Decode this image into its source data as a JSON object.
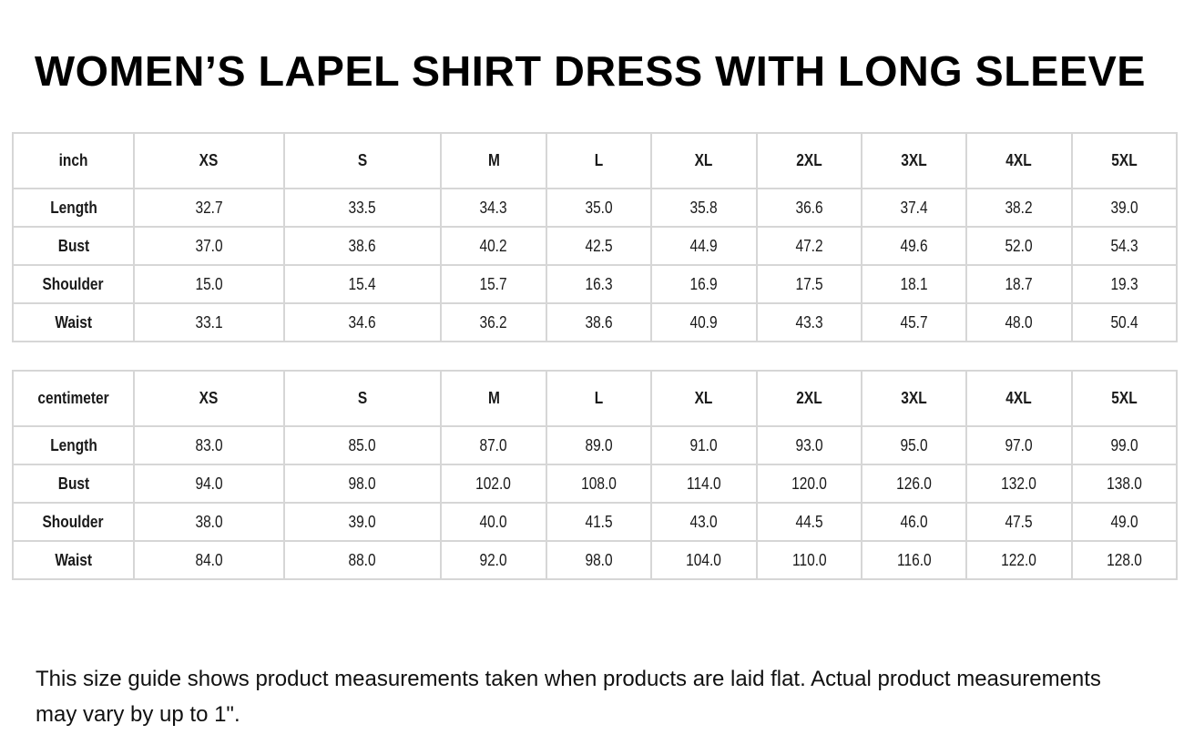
{
  "title": "WOMEN’S LAPEL SHIRT DRESS WITH LONG SLEEVE",
  "sizes": [
    "XS",
    "S",
    "M",
    "L",
    "XL",
    "2XL",
    "3XL",
    "4XL",
    "5XL"
  ],
  "tables": [
    {
      "unit": "inch",
      "rows": [
        {
          "label": "Length",
          "values": [
            "32.7",
            "33.5",
            "34.3",
            "35.0",
            "35.8",
            "36.6",
            "37.4",
            "38.2",
            "39.0"
          ]
        },
        {
          "label": "Bust",
          "values": [
            "37.0",
            "38.6",
            "40.2",
            "42.5",
            "44.9",
            "47.2",
            "49.6",
            "52.0",
            "54.3"
          ]
        },
        {
          "label": "Shoulder",
          "values": [
            "15.0",
            "15.4",
            "15.7",
            "16.3",
            "16.9",
            "17.5",
            "18.1",
            "18.7",
            "19.3"
          ]
        },
        {
          "label": "Waist",
          "values": [
            "33.1",
            "34.6",
            "36.2",
            "38.6",
            "40.9",
            "43.3",
            "45.7",
            "48.0",
            "50.4"
          ]
        }
      ]
    },
    {
      "unit": "centimeter",
      "rows": [
        {
          "label": "Length",
          "values": [
            "83.0",
            "85.0",
            "87.0",
            "89.0",
            "91.0",
            "93.0",
            "95.0",
            "97.0",
            "99.0"
          ]
        },
        {
          "label": "Bust",
          "values": [
            "94.0",
            "98.0",
            "102.0",
            "108.0",
            "114.0",
            "120.0",
            "126.0",
            "132.0",
            "138.0"
          ]
        },
        {
          "label": "Shoulder",
          "values": [
            "38.0",
            "39.0",
            "40.0",
            "41.5",
            "43.0",
            "44.5",
            "46.0",
            "47.5",
            "49.0"
          ]
        },
        {
          "label": "Waist",
          "values": [
            "84.0",
            "88.0",
            "92.0",
            "98.0",
            "104.0",
            "110.0",
            "116.0",
            "122.0",
            "128.0"
          ]
        }
      ]
    }
  ],
  "note": "This size guide shows product measurements taken when products are laid flat. Actual product measurements may vary by up to 1\"."
}
